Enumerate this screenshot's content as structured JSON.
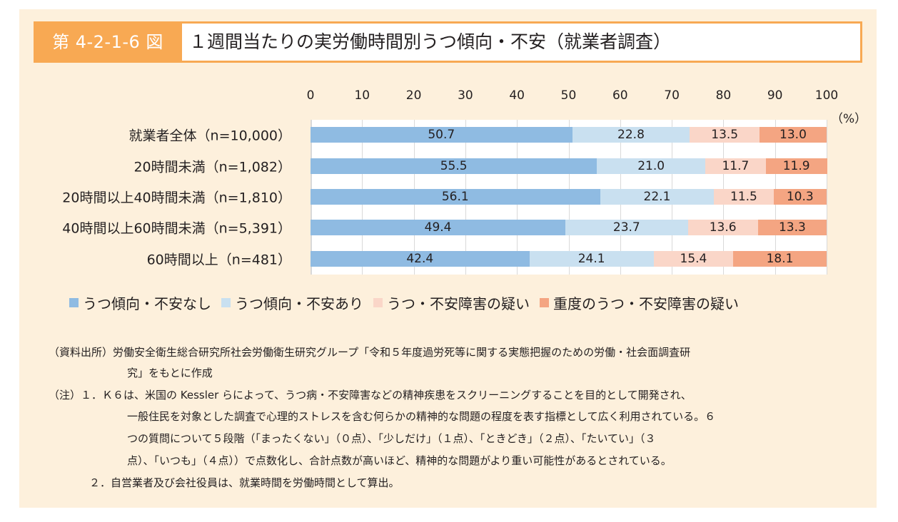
{
  "figure": {
    "number": "第 4-2-1-6 図",
    "title": "１週間当たりの実労働時間別うつ傾向・不安（就業者調査）"
  },
  "colors": {
    "panel_bg": "#fdf0dc",
    "title_accent": "#f8a953",
    "series": [
      "#8fbbe2",
      "#c9e0f0",
      "#fad6c8",
      "#f4a582"
    ]
  },
  "chart_data": {
    "type": "bar",
    "orientation": "horizontal",
    "stacked": true,
    "title": "１週間当たりの実労働時間別うつ傾向・不安（就業者調査）",
    "xlabel": "（%）",
    "ylabel": "",
    "xlim": [
      0,
      100
    ],
    "x_ticks": [
      "0",
      "10",
      "20",
      "30",
      "40",
      "50",
      "60",
      "70",
      "80",
      "90",
      "100"
    ],
    "grid": true,
    "legend_position": "bottom",
    "categories": [
      "就業者全体（n=10,000）",
      "20時間未満（n=1,082）",
      "20時間以上40時間未満（n=1,810）",
      "40時間以上60時間未満（n=5,391）",
      "60時間以上（n=481）"
    ],
    "series": [
      {
        "name": "うつ傾向・不安なし",
        "color": "#8fbbe2",
        "values": [
          50.7,
          55.5,
          56.1,
          49.4,
          42.4
        ]
      },
      {
        "name": "うつ傾向・不安あり",
        "color": "#c9e0f0",
        "values": [
          22.8,
          21.0,
          22.1,
          23.7,
          24.1
        ]
      },
      {
        "name": "うつ・不安障害の疑い",
        "color": "#fad6c8",
        "values": [
          13.5,
          11.7,
          11.5,
          13.6,
          15.4
        ]
      },
      {
        "name": "重度のうつ・不安障害の疑い",
        "color": "#f4a582",
        "values": [
          13.0,
          11.9,
          10.3,
          13.3,
          18.1
        ]
      }
    ],
    "value_labels": [
      [
        "50.7",
        "22.8",
        "13.5",
        "13.0"
      ],
      [
        "55.5",
        "21.0",
        "11.7",
        "11.9"
      ],
      [
        "56.1",
        "22.1",
        "11.5",
        "10.3"
      ],
      [
        "49.4",
        "23.7",
        "13.6",
        "13.3"
      ],
      [
        "42.4",
        "24.1",
        "15.4",
        "18.1"
      ]
    ]
  },
  "notes": {
    "source_line1": "（資料出所）労働安全衛生総合研究所社会労働衛生研究グループ「令和５年度過労死等に関する実態把握のための労働・社会面調査研",
    "source_line2": "究」をもとに作成",
    "note1_line1": "（注）１．Ｋ６は、米国の Kessler らによって、うつ病・不安障害などの精神疾患をスクリーニングすることを目的として開発され、",
    "note1_line2": "一般住民を対象とした調査で心理的ストレスを含む何らかの精神的な問題の程度を表す指標として広く利用されている。６",
    "note1_line3": "つの質問について５段階（「まったくない」（０点）、「少しだけ」（１点）、「ときどき」（２点）、「たいてい」（３",
    "note1_line4": "点）、「いつも」（４点））で点数化し、合計点数が高いほど、精神的な問題がより重い可能性があるとされている。",
    "note2": "２．自営業者及び会社役員は、就業時間を労働時間として算出。"
  }
}
